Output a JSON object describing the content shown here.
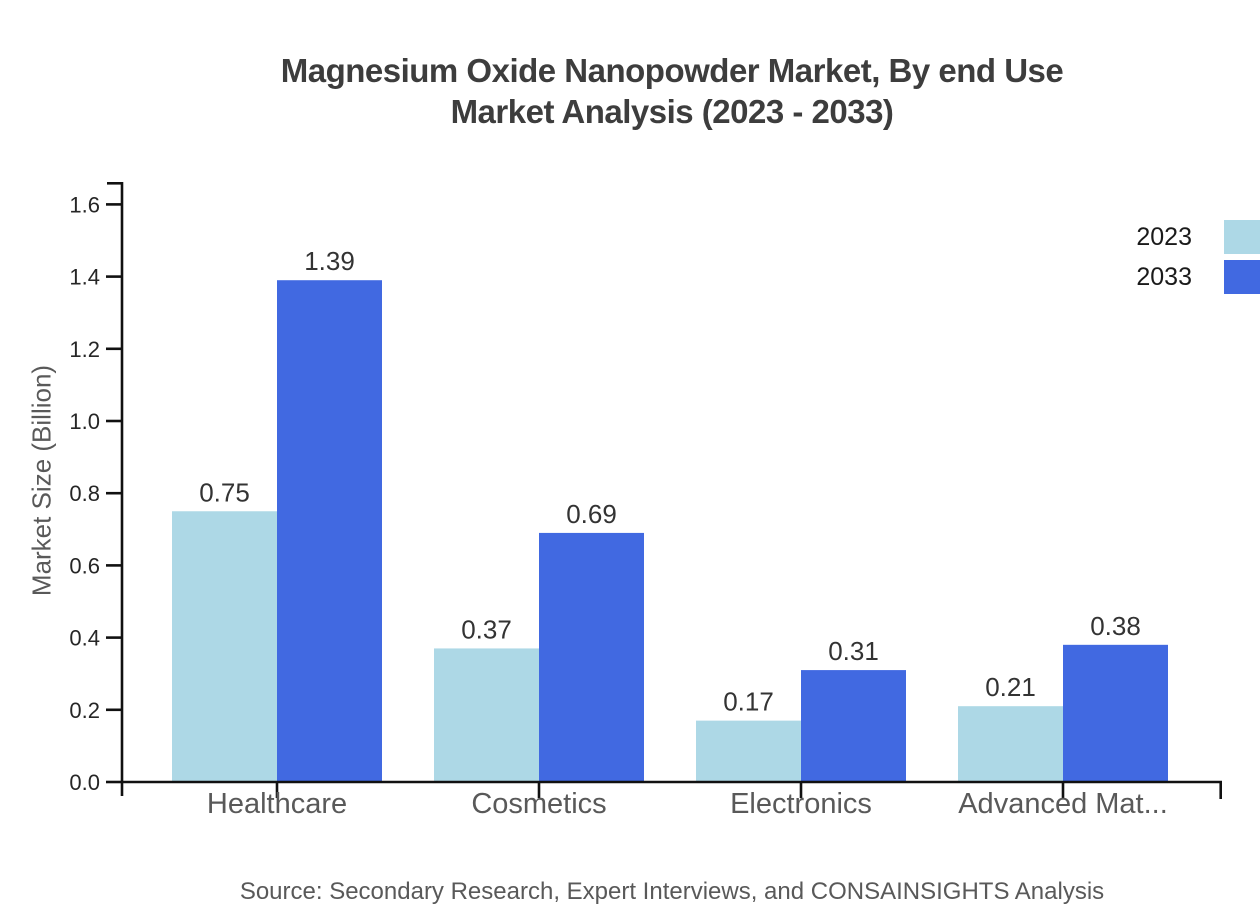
{
  "title": {
    "line1": "Magnesium Oxide Nanopowder Market, By end Use",
    "line2": "Market Analysis (2023 - 2033)"
  },
  "source": "Source: Secondary Research, Expert Interviews, and CONSAINSIGHTS Analysis",
  "chart_data": {
    "type": "bar",
    "categories": [
      "Healthcare",
      "Cosmetics",
      "Electronics",
      "Advanced Mat..."
    ],
    "series": [
      {
        "name": "2023",
        "color": "#ADD8E6",
        "values": [
          0.75,
          0.37,
          0.17,
          0.21
        ]
      },
      {
        "name": "2033",
        "color": "#4169E1",
        "values": [
          1.39,
          0.69,
          0.31,
          0.38
        ]
      }
    ],
    "value_labels": [
      "0.75",
      "1.39",
      "0.37",
      "0.69",
      "0.17",
      "0.31",
      "0.21",
      "0.38"
    ],
    "xlabel": "",
    "ylabel": "Market Size (Billion)",
    "ylim": [
      0,
      1.6
    ],
    "ytick_step": 0.2,
    "yticks": [
      "0.0",
      "0.2",
      "0.4",
      "0.6",
      "0.8",
      "1.0",
      "1.2",
      "1.4",
      "1.6"
    ],
    "grid": false,
    "legend_position": "top-right",
    "axis_color": "#111111",
    "tick_label_color": "#262626",
    "category_label_color": "#595959",
    "value_label_color": "#333333"
  }
}
